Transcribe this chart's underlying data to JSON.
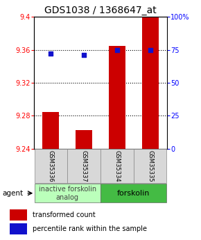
{
  "title": "GDS1038 / 1368647_at",
  "samples": [
    "GSM35336",
    "GSM35337",
    "GSM35334",
    "GSM35335"
  ],
  "red_values": [
    9.285,
    9.263,
    9.365,
    9.4
  ],
  "blue_values": [
    72,
    71,
    75,
    75
  ],
  "ylim_left": [
    9.24,
    9.4
  ],
  "ylim_right": [
    0,
    100
  ],
  "yticks_left": [
    9.24,
    9.28,
    9.32,
    9.36,
    9.4
  ],
  "yticks_right": [
    0,
    25,
    50,
    75,
    100
  ],
  "ytick_right_labels": [
    "0",
    "25",
    "50",
    "75",
    "100%"
  ],
  "gridlines": [
    9.28,
    9.32,
    9.36
  ],
  "bar_color": "#cc0000",
  "dot_color": "#1111cc",
  "bar_width": 0.5,
  "agent_group0_label": "inactive forskolin\nanalog",
  "agent_group0_color": "#bbffbb",
  "agent_group1_label": "forskolin",
  "agent_group1_color": "#44bb44",
  "legend_label_red": "transformed count",
  "legend_label_blue": "percentile rank within the sample",
  "title_fontsize": 10,
  "tick_fontsize": 7,
  "sample_fontsize": 6,
  "agent_fontsize": 7,
  "legend_fontsize": 7
}
